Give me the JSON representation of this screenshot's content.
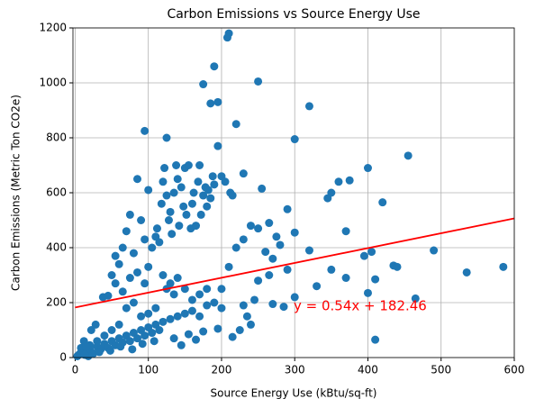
{
  "chart_data": {
    "type": "scatter",
    "title": "Carbon Emissions vs Source Energy Use",
    "x_label": "Source Energy Use (kBtu/sq-ft)",
    "y_label": "Carbon Emissions (Metric Ton CO2e)",
    "color": "#1f77b4",
    "x": [
      210,
      208,
      250,
      175,
      190,
      185,
      195,
      320,
      220,
      300,
      95,
      125,
      195,
      455,
      400,
      375,
      360,
      350,
      345,
      420,
      255,
      370,
      395,
      405,
      435,
      440,
      490,
      535,
      585,
      465,
      410,
      400,
      410,
      350,
      370,
      330,
      300,
      320,
      290,
      300,
      275,
      280,
      265,
      240,
      250,
      260,
      270,
      290,
      265,
      250,
      245,
      230,
      270,
      285,
      235,
      215,
      225,
      240,
      5,
      10,
      15,
      20,
      25,
      30,
      35,
      40,
      45,
      50,
      55,
      60,
      65,
      70,
      75,
      80,
      85,
      90,
      95,
      100,
      105,
      110,
      115,
      120,
      130,
      140,
      150,
      160,
      170,
      180,
      8,
      12,
      18,
      28,
      22,
      38,
      45,
      50,
      55,
      60,
      65,
      70,
      75,
      80,
      85,
      90,
      95,
      100,
      100,
      105,
      110,
      112,
      115,
      118,
      120,
      122,
      125,
      128,
      130,
      132,
      135,
      138,
      140,
      142,
      145,
      148,
      150,
      152,
      155,
      158,
      160,
      162,
      165,
      168,
      170,
      172,
      175,
      178,
      180,
      182,
      185,
      188,
      190,
      200,
      205,
      212,
      215,
      120,
      125,
      130,
      135,
      140,
      150,
      160,
      170,
      180,
      190,
      200,
      110,
      100,
      90,
      80,
      70,
      60,
      50,
      40,
      30,
      20,
      15,
      55,
      65,
      75,
      85,
      95,
      230,
      200,
      210,
      220,
      230,
      3,
      7,
      13,
      33,
      48,
      62,
      78,
      92,
      108,
      135,
      155,
      175,
      195,
      145,
      165
    ],
    "y": [
      1180,
      1165,
      1005,
      995,
      1060,
      925,
      930,
      915,
      850,
      795,
      825,
      800,
      770,
      735,
      690,
      645,
      640,
      600,
      580,
      565,
      615,
      460,
      370,
      385,
      335,
      330,
      390,
      310,
      330,
      215,
      65,
      235,
      285,
      320,
      290,
      260,
      220,
      390,
      540,
      455,
      440,
      410,
      490,
      480,
      470,
      385,
      360,
      320,
      300,
      280,
      210,
      190,
      195,
      185,
      150,
      75,
      100,
      120,
      10,
      20,
      25,
      30,
      15,
      40,
      30,
      50,
      35,
      60,
      45,
      70,
      55,
      80,
      60,
      90,
      70,
      100,
      80,
      110,
      90,
      120,
      100,
      130,
      140,
      150,
      160,
      170,
      150,
      190,
      35,
      60,
      5,
      120,
      100,
      220,
      225,
      300,
      370,
      340,
      400,
      460,
      520,
      380,
      650,
      500,
      430,
      610,
      330,
      400,
      440,
      470,
      420,
      560,
      640,
      690,
      590,
      500,
      530,
      450,
      600,
      700,
      650,
      480,
      620,
      550,
      690,
      520,
      700,
      470,
      560,
      600,
      480,
      640,
      700,
      520,
      590,
      620,
      550,
      610,
      580,
      660,
      630,
      660,
      640,
      600,
      590,
      300,
      250,
      270,
      230,
      290,
      250,
      210,
      230,
      250,
      200,
      180,
      180,
      160,
      150,
      200,
      180,
      120,
      100,
      80,
      60,
      45,
      40,
      270,
      240,
      290,
      310,
      270,
      670,
      250,
      330,
      400,
      430,
      5,
      15,
      10,
      20,
      25,
      40,
      30,
      50,
      60,
      70,
      85,
      95,
      105,
      45,
      65
    ],
    "fit": {
      "x": [
        0,
        600
      ],
      "slope": 0.54,
      "intercept": 182.46,
      "color": "red",
      "label": "y = 0.54x + 182.46"
    },
    "xlim": [
      -3,
      600
    ],
    "xticks": [
      0,
      100,
      200,
      300,
      400,
      500,
      600
    ],
    "ylim": [
      0,
      1200
    ],
    "yticks": [
      0,
      200,
      400,
      600,
      800,
      1000,
      1200
    ],
    "grid": true
  }
}
